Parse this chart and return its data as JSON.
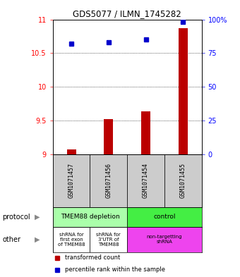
{
  "title": "GDS5077 / ILMN_1745282",
  "samples": [
    "GSM1071457",
    "GSM1071456",
    "GSM1071454",
    "GSM1071455"
  ],
  "transformed_counts": [
    9.07,
    9.52,
    9.63,
    10.87
  ],
  "percentile_ranks": [
    82,
    83,
    85,
    98
  ],
  "ylim_left": [
    9.0,
    11.0
  ],
  "ylim_right": [
    0,
    100
  ],
  "yticks_left": [
    9.0,
    9.5,
    10.0,
    10.5,
    11.0
  ],
  "yticks_right": [
    0,
    25,
    50,
    75,
    100
  ],
  "ytick_labels_left": [
    "9",
    "9.5",
    "10",
    "10.5",
    "11"
  ],
  "ytick_labels_right": [
    "0",
    "25",
    "50",
    "75",
    "100%"
  ],
  "bar_color": "#bb0000",
  "dot_color": "#0000cc",
  "plot_bg": "#ffffff",
  "names_bg": "#cccccc",
  "protocol_groups": [
    {
      "label": "TMEM88 depletion",
      "cols": [
        0,
        1
      ],
      "color": "#aaffaa"
    },
    {
      "label": "control",
      "cols": [
        2,
        3
      ],
      "color": "#44ee44"
    }
  ],
  "other_groups": [
    {
      "label": "shRNA for\nfirst exon\nof TMEM88",
      "cols": [
        0
      ],
      "color": "#ffffff"
    },
    {
      "label": "shRNA for\n3'UTR of\nTMEM88",
      "cols": [
        1
      ],
      "color": "#ffffff"
    },
    {
      "label": "non-targetting\nshRNA",
      "cols": [
        2,
        3
      ],
      "color": "#ee44ee"
    }
  ],
  "legend_items": [
    {
      "color": "#bb0000",
      "label": "transformed count"
    },
    {
      "color": "#0000cc",
      "label": "percentile rank within the sample"
    }
  ],
  "row_labels": [
    {
      "label": "protocol",
      "ax": "protocol"
    },
    {
      "label": "other",
      "ax": "other"
    }
  ]
}
